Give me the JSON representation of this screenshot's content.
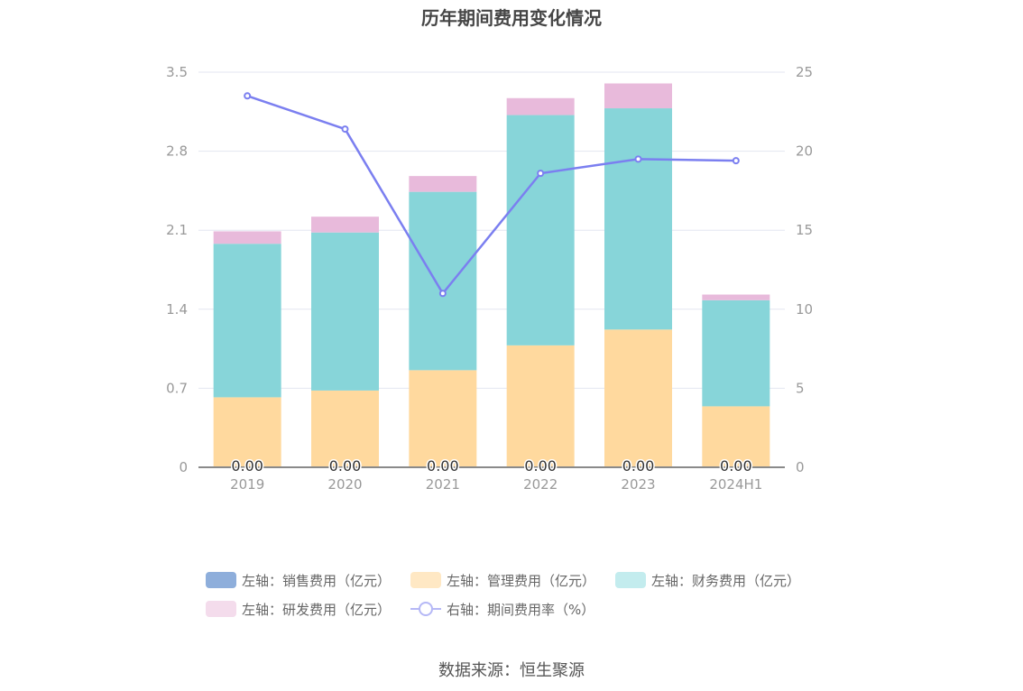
{
  "chart_data": {
    "type": "bar",
    "title": "历年期间费用变化情况",
    "categories": [
      "2019",
      "2020",
      "2021",
      "2022",
      "2023",
      "2024H1"
    ],
    "series": [
      {
        "name": "左轴：销售费用（亿元）",
        "axis": "left",
        "type": "bar",
        "color": "#8EAEDB",
        "values": [
          0.0,
          0.0,
          0.0,
          0.0,
          0.0,
          0.0
        ]
      },
      {
        "name": "左轴：管理费用（亿元）",
        "axis": "left",
        "type": "bar",
        "color": "#FFD99E",
        "values": [
          0.62,
          0.68,
          0.86,
          1.08,
          1.22,
          0.54
        ]
      },
      {
        "name": "左轴：财务费用（亿元）",
        "axis": "left",
        "type": "bar",
        "color": "#87D5D9",
        "values": [
          1.36,
          1.4,
          1.58,
          2.04,
          1.96,
          0.94
        ]
      },
      {
        "name": "左轴：研发费用（亿元）",
        "axis": "left",
        "type": "bar",
        "color": "#E8BADB",
        "values": [
          0.11,
          0.14,
          0.14,
          0.15,
          0.22,
          0.05
        ]
      },
      {
        "name": "右轴：期间费用率（%）",
        "axis": "right",
        "type": "line",
        "color": "#7B7FF0",
        "values": [
          23.5,
          21.4,
          11.0,
          18.6,
          19.5,
          19.4
        ]
      }
    ],
    "data_labels": [
      "0.00",
      "0.00",
      "0.00",
      "0.00",
      "0.00",
      "0.00"
    ],
    "left_axis": {
      "min": 0,
      "max": 3.5,
      "ticks": [
        "0",
        "0.7",
        "1.4",
        "2.1",
        "2.8",
        "3.5"
      ]
    },
    "right_axis": {
      "min": 0,
      "max": 25,
      "ticks": [
        "0",
        "5",
        "10",
        "15",
        "20",
        "25"
      ]
    },
    "grid": true,
    "legend_position": "bottom"
  },
  "legend": {
    "items": [
      {
        "label": "左轴：销售费用（亿元）",
        "color": "#8EAEDB",
        "kind": "bar"
      },
      {
        "label": "左轴：管理费用（亿元）",
        "color": "#FFE8C4",
        "kind": "bar"
      },
      {
        "label": "左轴：财务费用（亿元）",
        "color": "#C3ECEE",
        "kind": "bar"
      },
      {
        "label": "左轴：研发费用（亿元）",
        "color": "#F4DCEC",
        "kind": "bar"
      },
      {
        "label": "右轴：期间费用率（%）",
        "color": "#B5B8F6",
        "kind": "line"
      }
    ]
  },
  "source": "数据来源：恒生聚源"
}
